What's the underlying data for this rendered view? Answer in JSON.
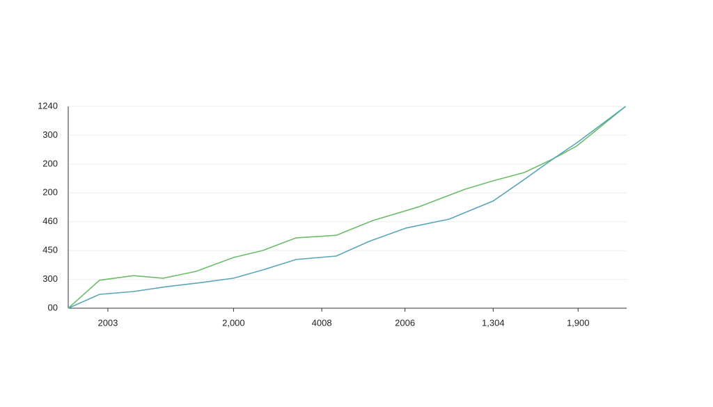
{
  "chart_data": {
    "type": "line",
    "xlim": [
      0,
      100
    ],
    "ylim": [
      0,
      7
    ],
    "xticks": [
      {
        "value": 7.1,
        "label": "2003"
      },
      {
        "value": 29.6,
        "label": "2,000"
      },
      {
        "value": 45.4,
        "label": "4008"
      },
      {
        "value": 60.3,
        "label": "2006"
      },
      {
        "value": 76.1,
        "label": "1,304"
      },
      {
        "value": 91.3,
        "label": "1,900"
      }
    ],
    "yticks": [
      {
        "value": 0,
        "label": "00"
      },
      {
        "value": 1,
        "label": "300"
      },
      {
        "value": 2,
        "label": "450"
      },
      {
        "value": 3,
        "label": "460"
      },
      {
        "value": 4,
        "label": "200"
      },
      {
        "value": 5,
        "label": "200"
      },
      {
        "value": 6,
        "label": "300"
      },
      {
        "value": 7,
        "label": "1240"
      }
    ],
    "grid": true,
    "series": [
      {
        "color": "#6cbd6a",
        "x": [
          0,
          5.6,
          11.7,
          17.0,
          22.9,
          29.6,
          34.8,
          40.8,
          48.0,
          54.5,
          62.8,
          71.1,
          76.1,
          81.7,
          86.9,
          91.0,
          99.8
        ],
        "values": [
          0,
          0.97,
          1.13,
          1.04,
          1.28,
          1.76,
          2.0,
          2.44,
          2.53,
          3.04,
          3.52,
          4.13,
          4.42,
          4.71,
          5.19,
          5.62,
          7.0
        ]
      },
      {
        "color": "#5aa5b8",
        "x": [
          0,
          5.6,
          11.7,
          17.7,
          23.9,
          29.6,
          35.2,
          40.8,
          48.0,
          53.9,
          60.5,
          68.2,
          76.1,
          81.7,
          86.9,
          91.3,
          99.8
        ],
        "values": [
          0,
          0.48,
          0.58,
          0.75,
          0.89,
          1.04,
          1.35,
          1.69,
          1.81,
          2.32,
          2.78,
          3.09,
          3.72,
          4.47,
          5.19,
          5.77,
          7.0
        ]
      }
    ]
  }
}
